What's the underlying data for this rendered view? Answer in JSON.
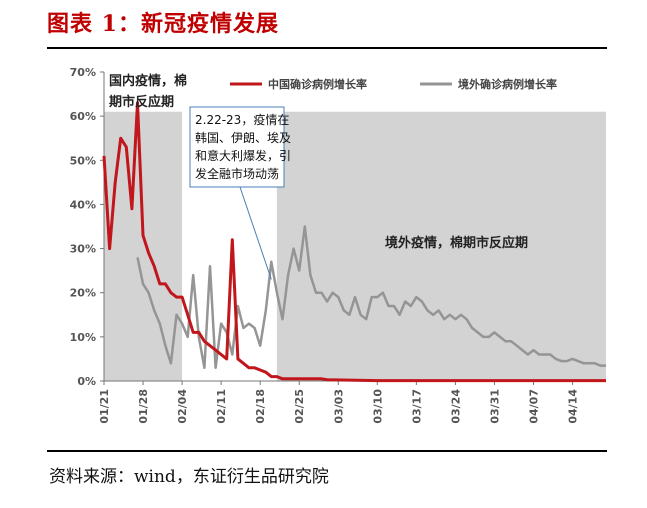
{
  "title": "图表 1：新冠疫情发展",
  "source": "资料来源：wind，东证衍生品研究院",
  "colors": {
    "title": "#c00000",
    "china_series": "#c0161c",
    "world_series": "#959595",
    "shade": "#d3d3d3"
  },
  "chart_data": {
    "type": "line",
    "ylim": [
      0,
      70
    ],
    "y_ticks": [
      "0%",
      "10%",
      "20%",
      "30%",
      "40%",
      "50%",
      "60%",
      "70%"
    ],
    "x_ticks": [
      "01/21",
      "01/28",
      "02/04",
      "02/11",
      "02/18",
      "02/25",
      "03/03",
      "03/10",
      "03/17",
      "03/24",
      "03/31",
      "04/07",
      "04/14"
    ],
    "x_start": "2020-01-21",
    "x_end": "2020-04-20",
    "series": [
      {
        "name": "中国确诊病例增长率",
        "points": [
          [
            "2020-01-21",
            51
          ],
          [
            "2020-01-22",
            30
          ],
          [
            "2020-01-23",
            45
          ],
          [
            "2020-01-24",
            55
          ],
          [
            "2020-01-25",
            53
          ],
          [
            "2020-01-26",
            39
          ],
          [
            "2020-01-27",
            63
          ],
          [
            "2020-01-28",
            33
          ],
          [
            "2020-01-29",
            29
          ],
          [
            "2020-01-30",
            26
          ],
          [
            "2020-01-31",
            22
          ],
          [
            "2020-02-01",
            22
          ],
          [
            "2020-02-02",
            20
          ],
          [
            "2020-02-03",
            19
          ],
          [
            "2020-02-04",
            19
          ],
          [
            "2020-02-05",
            15
          ],
          [
            "2020-02-06",
            11
          ],
          [
            "2020-02-07",
            11
          ],
          [
            "2020-02-08",
            9
          ],
          [
            "2020-02-09",
            8
          ],
          [
            "2020-02-10",
            7
          ],
          [
            "2020-02-11",
            6
          ],
          [
            "2020-02-12",
            5
          ],
          [
            "2020-02-13",
            32
          ],
          [
            "2020-02-14",
            5
          ],
          [
            "2020-02-15",
            4
          ],
          [
            "2020-02-16",
            3
          ],
          [
            "2020-02-17",
            3
          ],
          [
            "2020-02-18",
            2.5
          ],
          [
            "2020-02-19",
            2
          ],
          [
            "2020-02-20",
            1
          ],
          [
            "2020-02-21",
            1
          ],
          [
            "2020-02-22",
            0.5
          ],
          [
            "2020-02-23",
            0.5
          ],
          [
            "2020-02-24",
            0.5
          ],
          [
            "2020-02-25",
            0.5
          ],
          [
            "2020-02-26",
            0.5
          ],
          [
            "2020-02-27",
            0.5
          ],
          [
            "2020-02-28",
            0.5
          ],
          [
            "2020-02-29",
            0.5
          ],
          [
            "2020-03-01",
            0.3
          ],
          [
            "2020-03-05",
            0.2
          ],
          [
            "2020-03-10",
            0.1
          ],
          [
            "2020-03-15",
            0.1
          ],
          [
            "2020-03-20",
            0.1
          ],
          [
            "2020-03-25",
            0.1
          ],
          [
            "2020-03-31",
            0.1
          ],
          [
            "2020-04-07",
            0.1
          ],
          [
            "2020-04-14",
            0.1
          ],
          [
            "2020-04-20",
            0.1
          ]
        ]
      },
      {
        "name": "境外确诊病例增长率",
        "points": [
          [
            "2020-01-27",
            28
          ],
          [
            "2020-01-28",
            22
          ],
          [
            "2020-01-29",
            20
          ],
          [
            "2020-01-30",
            16
          ],
          [
            "2020-01-31",
            13
          ],
          [
            "2020-02-01",
            8
          ],
          [
            "2020-02-02",
            4
          ],
          [
            "2020-02-03",
            15
          ],
          [
            "2020-02-04",
            13
          ],
          [
            "2020-02-05",
            10
          ],
          [
            "2020-02-06",
            24
          ],
          [
            "2020-02-07",
            10
          ],
          [
            "2020-02-08",
            3
          ],
          [
            "2020-02-09",
            26
          ],
          [
            "2020-02-10",
            3
          ],
          [
            "2020-02-11",
            13
          ],
          [
            "2020-02-12",
            11
          ],
          [
            "2020-02-13",
            6
          ],
          [
            "2020-02-14",
            17
          ],
          [
            "2020-02-15",
            12
          ],
          [
            "2020-02-16",
            13
          ],
          [
            "2020-02-17",
            12
          ],
          [
            "2020-02-18",
            8
          ],
          [
            "2020-02-19",
            16
          ],
          [
            "2020-02-20",
            27
          ],
          [
            "2020-02-21",
            20
          ],
          [
            "2020-02-22",
            14
          ],
          [
            "2020-02-23",
            24
          ],
          [
            "2020-02-24",
            30
          ],
          [
            "2020-02-25",
            25
          ],
          [
            "2020-02-26",
            35
          ],
          [
            "2020-02-27",
            24
          ],
          [
            "2020-02-28",
            20
          ],
          [
            "2020-02-29",
            20
          ],
          [
            "2020-03-01",
            18
          ],
          [
            "2020-03-02",
            20
          ],
          [
            "2020-03-03",
            19
          ],
          [
            "2020-03-04",
            16
          ],
          [
            "2020-03-05",
            15
          ],
          [
            "2020-03-06",
            19
          ],
          [
            "2020-03-07",
            15
          ],
          [
            "2020-03-08",
            14
          ],
          [
            "2020-03-09",
            19
          ],
          [
            "2020-03-10",
            19
          ],
          [
            "2020-03-11",
            20
          ],
          [
            "2020-03-12",
            17
          ],
          [
            "2020-03-13",
            17
          ],
          [
            "2020-03-14",
            15
          ],
          [
            "2020-03-15",
            18
          ],
          [
            "2020-03-16",
            17
          ],
          [
            "2020-03-17",
            19
          ],
          [
            "2020-03-18",
            18
          ],
          [
            "2020-03-19",
            16
          ],
          [
            "2020-03-20",
            15
          ],
          [
            "2020-03-21",
            16
          ],
          [
            "2020-03-22",
            14
          ],
          [
            "2020-03-23",
            15
          ],
          [
            "2020-03-24",
            14
          ],
          [
            "2020-03-25",
            15
          ],
          [
            "2020-03-26",
            14
          ],
          [
            "2020-03-27",
            12
          ],
          [
            "2020-03-28",
            11
          ],
          [
            "2020-03-29",
            10
          ],
          [
            "2020-03-30",
            10
          ],
          [
            "2020-03-31",
            11
          ],
          [
            "2020-04-01",
            10
          ],
          [
            "2020-04-02",
            9
          ],
          [
            "2020-04-03",
            9
          ],
          [
            "2020-04-04",
            8
          ],
          [
            "2020-04-05",
            7
          ],
          [
            "2020-04-06",
            6
          ],
          [
            "2020-04-07",
            7
          ],
          [
            "2020-04-08",
            6
          ],
          [
            "2020-04-09",
            6
          ],
          [
            "2020-04-10",
            6
          ],
          [
            "2020-04-11",
            5
          ],
          [
            "2020-04-12",
            4.5
          ],
          [
            "2020-04-13",
            4.5
          ],
          [
            "2020-04-14",
            5
          ],
          [
            "2020-04-15",
            4.5
          ],
          [
            "2020-04-16",
            4
          ],
          [
            "2020-04-17",
            4
          ],
          [
            "2020-04-18",
            4
          ],
          [
            "2020-04-19",
            3.5
          ],
          [
            "2020-04-20",
            3.5
          ]
        ]
      }
    ],
    "shaded_regions": [
      {
        "label": "国内疫情，棉期市反应期",
        "from": "2020-01-21",
        "to": "2020-02-04"
      },
      {
        "label": "境外疫情，棉期市反应期",
        "from": "2020-02-21",
        "to": "2020-04-20"
      }
    ],
    "annotation": {
      "lines": [
        "2.22-23，疫情在",
        "韩国、伊朗、埃及",
        "和意大利爆发，引",
        "发全融市场动荡"
      ],
      "points_to": "2020-02-20"
    },
    "legend_position": "top"
  }
}
